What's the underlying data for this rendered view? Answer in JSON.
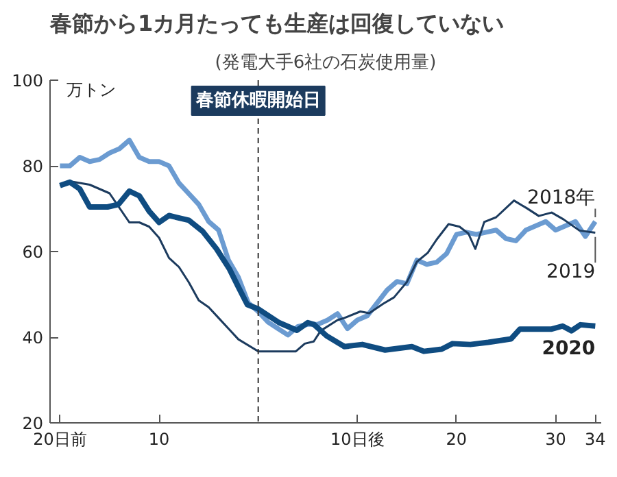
{
  "chart_data": {
    "type": "line",
    "title": "春節から1カ月たっても生産は回復していない",
    "subtitle": "(発電大手6社の石炭使用量)",
    "ylabel": "万トン",
    "xlim": [
      -21,
      34.6
    ],
    "ylim": [
      20,
      100
    ],
    "xticks": [
      {
        "value": -20,
        "label": "20日前"
      },
      {
        "value": -10,
        "label": "10"
      },
      {
        "value": 10,
        "label": "10日後"
      },
      {
        "value": 20,
        "label": "20"
      },
      {
        "value": 30,
        "label": "30"
      },
      {
        "value": 34,
        "label": "34"
      }
    ],
    "yticks": [
      20,
      40,
      60,
      80,
      100
    ],
    "grid": false,
    "marker": "none",
    "line_style": "solid",
    "ref_lines": [
      {
        "axis": "x",
        "value": 0,
        "label": "春節休暇開始日",
        "color": "#333333",
        "line_style": "dashed"
      }
    ],
    "series": [
      {
        "name": "2018年",
        "color": "#6b9bd1",
        "x": [
          -20,
          -19,
          -18,
          -17,
          -16,
          -15,
          -14,
          -13,
          -12,
          -11,
          -10,
          -9,
          -8,
          -7,
          -6,
          -5,
          -4,
          -3,
          -2,
          -1,
          0,
          1,
          2,
          3,
          4,
          5,
          6,
          7,
          8,
          9,
          10,
          11,
          12,
          13,
          14,
          15,
          16,
          17,
          18,
          19,
          20,
          21,
          22,
          23,
          24,
          25,
          26,
          27,
          28,
          29,
          30,
          31,
          32,
          33,
          34
        ],
        "values": [
          80,
          80,
          82,
          81,
          81.5,
          83,
          84,
          86,
          82,
          81,
          81,
          80,
          76,
          73.5,
          71,
          67,
          65,
          58,
          54,
          48,
          46,
          43.5,
          42,
          40.5,
          42.5,
          43,
          43,
          44,
          45.5,
          42,
          44,
          45,
          48,
          51,
          53,
          52.5,
          58,
          57,
          57.5,
          59.5,
          64,
          64.5,
          64,
          64.5,
          65,
          63,
          62.5,
          65,
          66,
          67,
          65,
          66,
          67,
          63.5,
          67
        ]
      },
      {
        "name": "2019",
        "color": "#1c3b5e",
        "x": [
          -20,
          -19,
          -17,
          -15,
          -13,
          -12,
          -11,
          -10,
          -9,
          -8,
          -7,
          -6,
          -5,
          -4,
          -3,
          -2,
          0,
          1.6,
          3.8,
          4.7,
          5.6,
          6.3,
          8,
          8.7,
          10.3,
          11.2,
          12.6,
          13.7,
          15,
          16,
          17.1,
          18,
          19.2,
          20.3,
          21.2,
          21.9,
          22.8,
          24,
          25.8,
          27.1,
          28.3,
          29.6,
          30.8,
          32.4,
          34
        ],
        "values": [
          75.4,
          76.4,
          75.6,
          73.6,
          66.8,
          66.8,
          65.8,
          63.2,
          58.5,
          56.4,
          52.8,
          48.6,
          47,
          44.5,
          42,
          39.5,
          36.7,
          36.7,
          36.7,
          38.5,
          39,
          41.5,
          44,
          44.5,
          46,
          45.6,
          47.8,
          49.3,
          52.9,
          57.6,
          59.7,
          62.8,
          66.4,
          65.8,
          64.2,
          60.6,
          66.9,
          68,
          71.9,
          70.1,
          68.3,
          69.1,
          67.5,
          64.9,
          64.4
        ]
      },
      {
        "name": "2020",
        "color": "#0f4c81",
        "x": [
          -20,
          -19,
          -18,
          -17,
          -15.2,
          -14.1,
          -13,
          -12,
          -11,
          -10,
          -9,
          -7,
          -5.6,
          -4.2,
          -2.9,
          -2,
          -1.1,
          0,
          2.1,
          3.9,
          5,
          5.6,
          6.9,
          8.7,
          10.5,
          12.8,
          15.5,
          16.7,
          18.5,
          19.6,
          21.4,
          23.2,
          25.5,
          26.4,
          29.6,
          30.7,
          31.6,
          32.5,
          34
        ],
        "values": [
          75.4,
          76.2,
          74.6,
          70.4,
          70.4,
          71,
          74.1,
          73,
          69.4,
          66.8,
          68.4,
          67.3,
          64.7,
          60.6,
          55.9,
          51.7,
          47.6,
          46.6,
          43.4,
          41.6,
          43.4,
          43,
          40.3,
          37.8,
          38.3,
          37,
          37.8,
          36.7,
          37.2,
          38.5,
          38.3,
          38.8,
          39.6,
          41.9,
          41.9,
          42.6,
          41.5,
          42.9,
          42.6
        ]
      }
    ]
  }
}
